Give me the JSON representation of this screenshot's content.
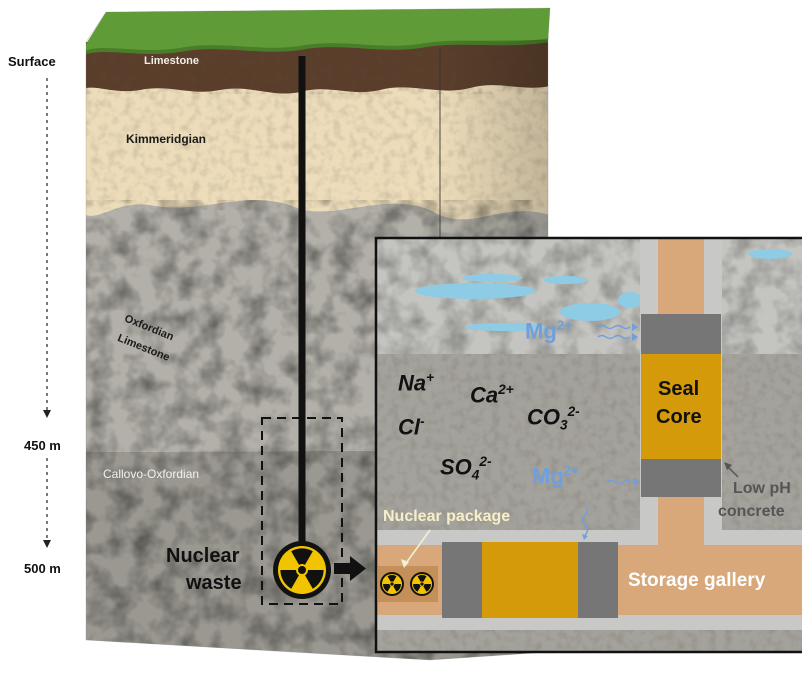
{
  "depth_axis": {
    "surface": "Surface",
    "depth_450": "450 m",
    "depth_500": "500 m"
  },
  "layers": {
    "limestone": "Limestone",
    "kimmeridgian": "Kimmeridgian",
    "oxfordian_line1": "Oxfordian",
    "oxfordian_line2": "Limestone",
    "callovo": "Callovo-Oxfordian"
  },
  "waste": {
    "line1": "Nuclear",
    "line2": "waste"
  },
  "inset": {
    "seal_line1": "Seal",
    "seal_line2": "Core",
    "low_ph_line1": "Low pH",
    "low_ph_line2": "concrete",
    "nuclear_package": "Nuclear package",
    "storage_gallery": "Storage gallery",
    "ions": {
      "na": {
        "base": "Na",
        "sup": "+"
      },
      "cl": {
        "base": "Cl",
        "sup": "-"
      },
      "ca": {
        "base": "Ca",
        "sup": "2+"
      },
      "co3": {
        "base": "CO",
        "sub": "3",
        "sup": "2-"
      },
      "so4": {
        "base": "SO",
        "sub": "4",
        "sup": "2-"
      },
      "mg_upper": {
        "base": "Mg",
        "sup": "2+"
      },
      "mg_lower": {
        "base": "Mg",
        "sup": "2+"
      }
    }
  },
  "colors": {
    "grass": "#5f9c37",
    "limestone_top": "#5a3e2b",
    "kimmeridgian": "#ecdcba",
    "oxfordian": "#b2b0a8",
    "callovo": "#9a9890",
    "seal_core": "#d49a0a",
    "low_ph_concrete": "#d8a77a",
    "concrete_grey": "#767676",
    "ion_blue": "#6f9fdd",
    "water_blue": "#8ecbe4",
    "hazard_yellow": "#f2c400"
  }
}
